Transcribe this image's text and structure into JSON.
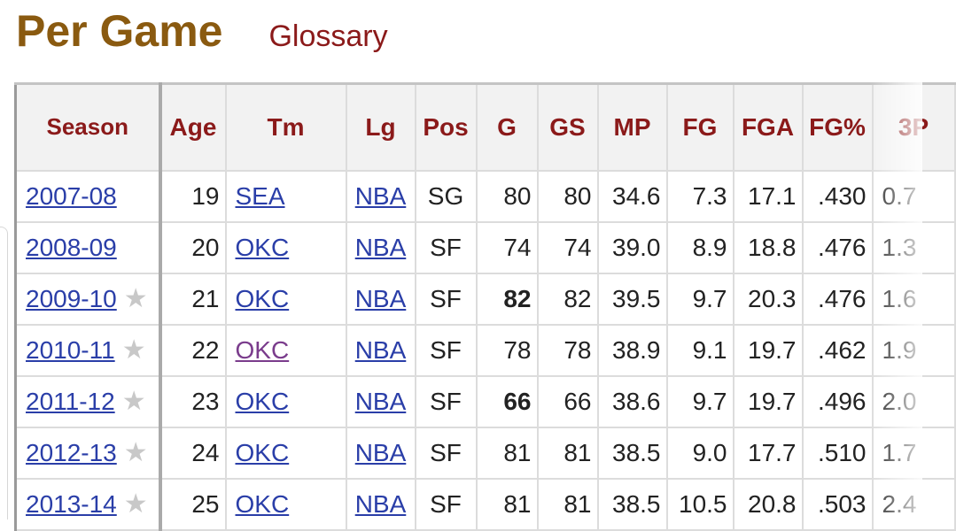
{
  "heading": {
    "title": "Per Game",
    "glossary_link": "Glossary"
  },
  "table": {
    "columns": [
      "Season",
      "Age",
      "Tm",
      "Lg",
      "Pos",
      "G",
      "GS",
      "MP",
      "FG",
      "FGA",
      "FG%",
      "3P"
    ],
    "rows": [
      {
        "season": "2007-08",
        "all_star": false,
        "age": "19",
        "tm": "SEA",
        "tm_visited": false,
        "lg": "NBA",
        "pos": "SG",
        "g": "80",
        "g_bold": false,
        "gs": "80",
        "mp": "34.6",
        "fg": "7.3",
        "fga": "17.1",
        "fgp": ".430",
        "tp": "0.7"
      },
      {
        "season": "2008-09",
        "all_star": false,
        "age": "20",
        "tm": "OKC",
        "tm_visited": false,
        "lg": "NBA",
        "pos": "SF",
        "g": "74",
        "g_bold": false,
        "gs": "74",
        "mp": "39.0",
        "fg": "8.9",
        "fga": "18.8",
        "fgp": ".476",
        "tp": "1.3"
      },
      {
        "season": "2009-10",
        "all_star": true,
        "age": "21",
        "tm": "OKC",
        "tm_visited": false,
        "lg": "NBA",
        "pos": "SF",
        "g": "82",
        "g_bold": true,
        "gs": "82",
        "mp": "39.5",
        "fg": "9.7",
        "fga": "20.3",
        "fgp": ".476",
        "tp": "1.6"
      },
      {
        "season": "2010-11",
        "all_star": true,
        "age": "22",
        "tm": "OKC",
        "tm_visited": true,
        "lg": "NBA",
        "pos": "SF",
        "g": "78",
        "g_bold": false,
        "gs": "78",
        "mp": "38.9",
        "fg": "9.1",
        "fga": "19.7",
        "fgp": ".462",
        "tp": "1.9"
      },
      {
        "season": "2011-12",
        "all_star": true,
        "age": "23",
        "tm": "OKC",
        "tm_visited": false,
        "lg": "NBA",
        "pos": "SF",
        "g": "66",
        "g_bold": true,
        "gs": "66",
        "mp": "38.6",
        "fg": "9.7",
        "fga": "19.7",
        "fgp": ".496",
        "tp": "2.0"
      },
      {
        "season": "2012-13",
        "all_star": true,
        "age": "24",
        "tm": "OKC",
        "tm_visited": false,
        "lg": "NBA",
        "pos": "SF",
        "g": "81",
        "g_bold": false,
        "gs": "81",
        "mp": "38.5",
        "fg": "9.0",
        "fga": "17.7",
        "fgp": ".510",
        "tp": "1.7"
      },
      {
        "season": "2013-14",
        "all_star": true,
        "age": "25",
        "tm": "OKC",
        "tm_visited": false,
        "lg": "NBA",
        "pos": "SF",
        "g": "81",
        "g_bold": false,
        "gs": "81",
        "mp": "38.5",
        "fg": "10.5",
        "fga": "20.8",
        "fgp": ".503",
        "tp": "2.4"
      }
    ]
  },
  "icons": {
    "all_star": "star-icon"
  },
  "colors": {
    "title": "#8a5a10",
    "header_text": "#8b1a1a",
    "link": "#2a3ea8",
    "visited_link": "#7a3c8c",
    "header_bg": "#f2f2f2"
  }
}
